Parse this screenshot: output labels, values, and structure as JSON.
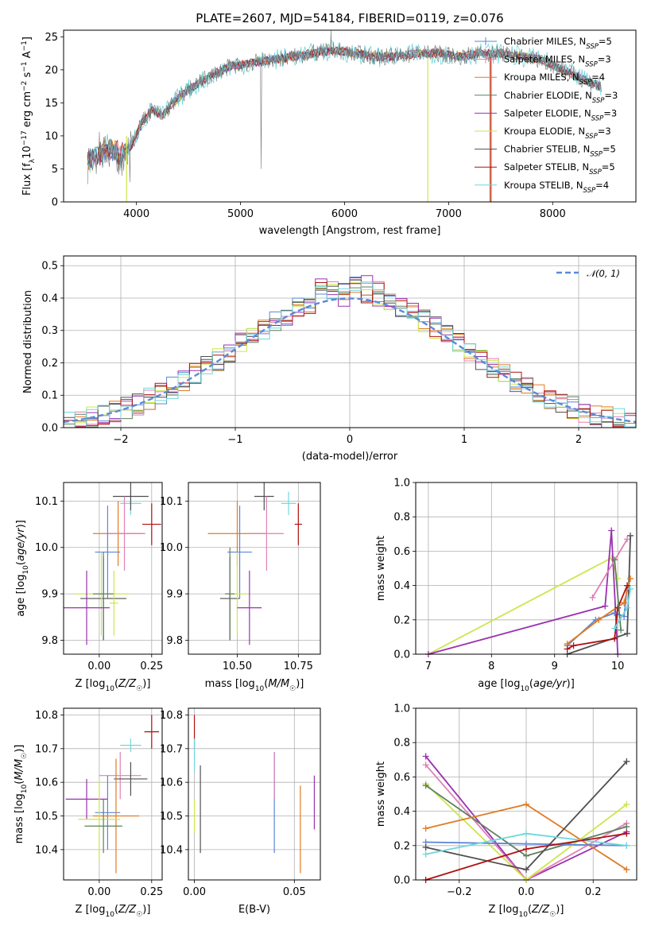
{
  "colors": {
    "chabrier_miles": "#5b86d6",
    "salpeter_miles": "#e07fb5",
    "kroupa_miles": "#e07b25",
    "chabrier_elodie": "#5f7f5f",
    "salpeter_elodie": "#9b30b0",
    "kroupa_elodie": "#cde64a",
    "chabrier_stelib": "#4f4f4f",
    "salpeter_stelib": "#b01010",
    "kroupa_stelib": "#6fd6dc",
    "normal_curve": "#5a8ad8"
  },
  "chart_data": [
    {
      "id": "spectrum",
      "type": "line",
      "title": "PLATE=2607, MJD=54184, FIBERID=0119, z=0.076",
      "xlabel": "wavelength [Angstrom, rest frame]",
      "ylabel": "Flux [f_λ 10^-17 erg cm^-2 s^-1 A^-1]",
      "xlim": [
        3300,
        8800
      ],
      "ylim": [
        0,
        26
      ],
      "xticks": [
        "4000",
        "5000",
        "6000",
        "7000",
        "8000"
      ],
      "yticks": [
        "0",
        "5",
        "10",
        "15",
        "20",
        "25"
      ],
      "grid": false,
      "legend_position": "upper-right",
      "spectrum_anchor_points": {
        "wavelength": [
          3550,
          3650,
          3750,
          3850,
          3950,
          4050,
          4150,
          4250,
          4350,
          4500,
          4700,
          4900,
          5100,
          5300,
          5500,
          5700,
          5900,
          6100,
          6300,
          6500,
          6700,
          6900,
          7100,
          7300,
          7500,
          7700,
          7900,
          8100,
          8300,
          8450
        ],
        "flux": [
          6,
          7.5,
          8,
          7,
          8.5,
          12,
          14,
          13,
          15,
          17,
          19,
          20.5,
          21,
          21.5,
          22,
          22.5,
          23,
          22.5,
          22,
          22,
          22.5,
          22.5,
          22,
          22.5,
          22.5,
          22,
          21.5,
          20,
          18.5,
          17.5
        ]
      },
      "legend": [
        {
          "label": "Chabrier MILES, N_SSP=5",
          "label_main": "Chabrier MILES, N",
          "label_sub": "SSP",
          "label_tail": "=5",
          "color_key": "chabrier_miles"
        },
        {
          "label": "Salpeter MILES, N_SSP=3",
          "label_main": "Salpeter MILES, N",
          "label_sub": "SSP",
          "label_tail": "=3",
          "color_key": "salpeter_miles"
        },
        {
          "label": "Kroupa MILES, N_SSP=4",
          "label_main": "Kroupa MILES, N",
          "label_sub": "SSP",
          "label_tail": "=4",
          "color_key": "kroupa_miles"
        },
        {
          "label": "Chabrier ELODIE, N_SSP=3",
          "label_main": "Chabrier ELODIE, N",
          "label_sub": "SSP",
          "label_tail": "=3",
          "color_key": "chabrier_elodie"
        },
        {
          "label": "Salpeter ELODIE, N_SSP=3",
          "label_main": "Salpeter ELODIE, N",
          "label_sub": "SSP",
          "label_tail": "=3",
          "color_key": "salpeter_elodie"
        },
        {
          "label": "Kroupa ELODIE, N_SSP=3",
          "label_main": "Kroupa ELODIE, N",
          "label_sub": "SSP",
          "label_tail": "=3",
          "color_key": "kroupa_elodie"
        },
        {
          "label": "Chabrier STELIB, N_SSP=5",
          "label_main": "Chabrier STELIB, N",
          "label_sub": "SSP",
          "label_tail": "=5",
          "color_key": "chabrier_stelib"
        },
        {
          "label": "Salpeter STELIB, N_SSP=5",
          "label_main": "Salpeter STELIB, N",
          "label_sub": "SSP",
          "label_tail": "=5",
          "color_key": "salpeter_stelib"
        },
        {
          "label": "Kroupa STELIB, N_SSP=4",
          "label_main": "Kroupa STELIB, N",
          "label_sub": "SSP",
          "label_tail": "=4",
          "color_key": "kroupa_stelib"
        }
      ]
    },
    {
      "id": "residuals",
      "type": "histogram",
      "xlabel": "(data-model)/error",
      "ylabel": "Normed distribution",
      "xlim": [
        -2.5,
        2.5
      ],
      "ylim": [
        0,
        0.53
      ],
      "xticks": [
        "−2",
        "−1",
        "0",
        "1",
        "2"
      ],
      "yticks": [
        "0.0",
        "0.1",
        "0.2",
        "0.3",
        "0.4",
        "0.5"
      ],
      "grid": true,
      "legend": "𝒩(0, 1)",
      "legend_position": "upper-right",
      "bin_width": 0.1,
      "bin_start": -2.5,
      "approx_distribution": "standard normal, max ≈ 0.40 at 0, histogram peaks ≈ 0.50"
    },
    {
      "id": "age_vs_Z",
      "type": "scatter-errorbar",
      "xlabel": "Z [log10(Z/Z☉)]",
      "ylabel": "age [log10(age/yr)]",
      "xlim": [
        -0.17,
        0.3
      ],
      "ylim": [
        9.77,
        10.14
      ],
      "xticks": [
        "0.00",
        "0.25"
      ],
      "yticks": [
        "9.8",
        "9.9",
        "10.0",
        "10.1"
      ],
      "grid": true,
      "points": [
        {
          "color_key": "kroupa_stelib",
          "x": 0.15,
          "y": 10.095,
          "xerr": 0.05,
          "yerr": 0.025
        },
        {
          "color_key": "chabrier_stelib",
          "x": 0.15,
          "y": 10.11,
          "xerr": 0.085,
          "yerr": 0.03
        },
        {
          "color_key": "salpeter_stelib",
          "x": 0.25,
          "y": 10.05,
          "xerr": 0.045,
          "yerr": 0.045
        },
        {
          "color_key": "kroupa_miles",
          "x": 0.09,
          "y": 10.03,
          "xerr": 0.12,
          "yerr": 0.07
        },
        {
          "color_key": "salpeter_miles",
          "x": 0.12,
          "y": 10.03,
          "xerr": 0.1,
          "yerr": 0.08
        },
        {
          "color_key": "chabrier_miles",
          "x": 0.04,
          "y": 9.99,
          "xerr": 0.06,
          "yerr": 0.1
        },
        {
          "color_key": "chabrier_stelib",
          "x": 0.02,
          "y": 9.89,
          "xerr": 0.11,
          "yerr": 0.09
        },
        {
          "color_key": "kroupa_elodie",
          "x": 0.01,
          "y": 9.9,
          "xerr": 0.13,
          "yerr": 0.09
        },
        {
          "color_key": "chabrier_elodie",
          "x": 0.02,
          "y": 9.9,
          "xerr": 0.05,
          "yerr": 0.09
        },
        {
          "color_key": "salpeter_elodie",
          "x": -0.06,
          "y": 9.87,
          "xerr": 0.11,
          "yerr": 0.08
        },
        {
          "color_key": "kroupa_elodie",
          "x": 0.07,
          "y": 9.88,
          "xerr": 0.02,
          "yerr": 0.07
        }
      ]
    },
    {
      "id": "age_vs_mass",
      "type": "scatter-errorbar",
      "xlabel": "mass [log10(M/M☉)]",
      "ylabel": "",
      "xlim": [
        10.3,
        10.84
      ],
      "ylim": [
        9.77,
        10.14
      ],
      "xticks": [
        "10.50",
        "10.75"
      ],
      "yticks": [
        "9.8",
        "9.9",
        "10.0",
        "10.1"
      ],
      "grid": true,
      "points": [
        {
          "color_key": "chabrier_stelib",
          "x": 10.61,
          "y": 10.11,
          "xerr": 0.04,
          "yerr": 0.03
        },
        {
          "color_key": "kroupa_stelib",
          "x": 10.71,
          "y": 10.095,
          "xerr": 0.03,
          "yerr": 0.025
        },
        {
          "color_key": "salpeter_stelib",
          "x": 10.75,
          "y": 10.05,
          "xerr": 0.015,
          "yerr": 0.045
        },
        {
          "color_key": "kroupa_miles",
          "x": 10.5,
          "y": 10.03,
          "xerr": 0.12,
          "yerr": 0.07
        },
        {
          "color_key": "salpeter_miles",
          "x": 10.62,
          "y": 10.03,
          "xerr": 0.07,
          "yerr": 0.08
        },
        {
          "color_key": "chabrier_miles",
          "x": 10.51,
          "y": 9.99,
          "xerr": 0.05,
          "yerr": 0.1
        },
        {
          "color_key": "chabrier_stelib",
          "x": 10.47,
          "y": 9.89,
          "xerr": 0.04,
          "yerr": 0.09
        },
        {
          "color_key": "kroupa_elodie",
          "x": 10.5,
          "y": 9.9,
          "xerr": 0.04,
          "yerr": 0.09
        },
        {
          "color_key": "chabrier_elodie",
          "x": 10.47,
          "y": 9.9,
          "xerr": 0.02,
          "yerr": 0.1
        },
        {
          "color_key": "salpeter_elodie",
          "x": 10.55,
          "y": 9.87,
          "xerr": 0.05,
          "yerr": 0.08
        }
      ]
    },
    {
      "id": "weight_vs_age",
      "type": "line",
      "xlabel": "age [log10(age/yr)]",
      "ylabel": "mass weight",
      "xlim": [
        6.8,
        10.3
      ],
      "ylim": [
        0,
        1
      ],
      "xticks": [
        "7",
        "8",
        "9",
        "10"
      ],
      "yticks": [
        "0.0",
        "0.2",
        "0.4",
        "0.6",
        "0.8",
        "1.0"
      ],
      "grid": true,
      "series": [
        {
          "color_key": "kroupa_elodie",
          "x": [
            7.0,
            9.9,
            10.0
          ],
          "y": [
            0.0,
            0.56,
            0.44
          ]
        },
        {
          "color_key": "salpeter_elodie",
          "x": [
            7.0,
            9.8,
            9.9,
            10.0
          ],
          "y": [
            0.0,
            0.28,
            0.72,
            0.0
          ]
        },
        {
          "color_key": "salpeter_miles",
          "x": [
            9.6,
            10.15
          ],
          "y": [
            0.33,
            0.67
          ]
        },
        {
          "color_key": "chabrier_stelib",
          "x": [
            9.2,
            10.15,
            10.2
          ],
          "y": [
            0.0,
            0.12,
            0.69
          ]
        },
        {
          "color_key": "chabrier_miles",
          "x": [
            9.2,
            9.65,
            9.95,
            10.1,
            10.15
          ],
          "y": [
            0.05,
            0.2,
            0.24,
            0.22,
            0.4
          ]
        },
        {
          "color_key": "kroupa_miles",
          "x": [
            9.2,
            9.7,
            10.1,
            10.2
          ],
          "y": [
            0.06,
            0.2,
            0.3,
            0.44
          ]
        },
        {
          "color_key": "salpeter_stelib",
          "x": [
            9.2,
            9.3,
            9.95,
            10.0,
            10.15
          ],
          "y": [
            0.03,
            0.05,
            0.09,
            0.27,
            0.4
          ]
        },
        {
          "color_key": "chabrier_elodie",
          "x": [
            9.95,
            10.05
          ],
          "y": [
            0.55,
            0.14
          ]
        },
        {
          "color_key": "kroupa_stelib",
          "x": [
            9.95,
            10.15,
            10.2
          ],
          "y": [
            0.15,
            0.27,
            0.38
          ]
        }
      ]
    },
    {
      "id": "mass_vs_Z",
      "type": "scatter-errorbar",
      "xlabel": "Z [log10(Z/Z☉)]",
      "ylabel": "mass [log10(M/M☉)]",
      "xlim": [
        -0.17,
        0.3
      ],
      "ylim": [
        10.31,
        10.82
      ],
      "xticks": [
        "0.00",
        "0.25"
      ],
      "yticks": [
        "10.4",
        "10.5",
        "10.6",
        "10.7",
        "10.8"
      ],
      "grid": true,
      "points": [
        {
          "color_key": "salpeter_stelib",
          "x": 0.25,
          "y": 10.75,
          "xerr": 0.035,
          "yerr": 0.05
        },
        {
          "color_key": "kroupa_stelib",
          "x": 0.15,
          "y": 10.71,
          "xerr": 0.05,
          "yerr": 0.02
        },
        {
          "color_key": "salpeter_miles",
          "x": 0.1,
          "y": 10.62,
          "xerr": 0.1,
          "yerr": 0.07
        },
        {
          "color_key": "chabrier_stelib",
          "x": 0.15,
          "y": 10.61,
          "xerr": 0.08,
          "yerr": 0.05
        },
        {
          "color_key": "salpeter_elodie",
          "x": -0.06,
          "y": 10.55,
          "xerr": 0.1,
          "yerr": 0.06
        },
        {
          "color_key": "chabrier_miles",
          "x": 0.04,
          "y": 10.51,
          "xerr": 0.06,
          "yerr": 0.11
        },
        {
          "color_key": "kroupa_miles",
          "x": 0.08,
          "y": 10.5,
          "xerr": 0.11,
          "yerr": 0.17
        },
        {
          "color_key": "kroupa_elodie",
          "x": 0.0,
          "y": 10.49,
          "xerr": 0.1,
          "yerr": 0.12
        },
        {
          "color_key": "chabrier_elodie",
          "x": 0.02,
          "y": 10.47,
          "xerr": 0.09,
          "yerr": 0.08
        }
      ]
    },
    {
      "id": "mass_vs_ebv",
      "type": "scatter-errorbar",
      "xlabel": "E(B-V)",
      "ylabel": "",
      "xlim": [
        -0.003,
        0.063
      ],
      "ylim": [
        10.31,
        10.82
      ],
      "xticks": [
        "0.00",
        "0.05"
      ],
      "yticks": [
        "10.4",
        "10.5",
        "10.6",
        "10.7",
        "10.8"
      ],
      "grid": true,
      "points": [
        {
          "color_key": "salpeter_stelib",
          "x": 0.0,
          "y": 10.75,
          "xerr": 0,
          "yerr": 0.05
        },
        {
          "color_key": "kroupa_stelib",
          "x": 0.0,
          "y": 10.68,
          "xerr": 0,
          "yerr": 0.05
        },
        {
          "color_key": "kroupa_elodie",
          "x": 0.0,
          "y": 10.5,
          "xerr": 0,
          "yerr": 0.05
        },
        {
          "color_key": "chabrier_stelib",
          "x": 0.003,
          "y": 10.52,
          "xerr": 0,
          "yerr": 0.13
        },
        {
          "color_key": "chabrier_miles",
          "x": 0.04,
          "y": 10.54,
          "xerr": 0,
          "yerr": 0.15
        },
        {
          "color_key": "salpeter_miles",
          "x": 0.04,
          "y": 10.62,
          "xerr": 0,
          "yerr": 0.07
        },
        {
          "color_key": "kroupa_miles",
          "x": 0.053,
          "y": 10.46,
          "xerr": 0,
          "yerr": 0.13
        },
        {
          "color_key": "salpeter_elodie",
          "x": 0.06,
          "y": 10.54,
          "xerr": 0,
          "yerr": 0.08
        }
      ]
    },
    {
      "id": "weight_vs_Z",
      "type": "line",
      "xlabel": "Z [log10(Z/Z☉)]",
      "ylabel": "mass weight",
      "xlim": [
        -0.33,
        0.33
      ],
      "ylim": [
        0,
        1
      ],
      "xticks": [
        "−0.2",
        "0.0",
        "0.2"
      ],
      "yticks": [
        "0.0",
        "0.2",
        "0.4",
        "0.6",
        "0.8",
        "1.0"
      ],
      "grid": true,
      "series": [
        {
          "color_key": "salpeter_elodie",
          "x": [
            -0.3,
            0.0,
            0.3
          ],
          "y": [
            0.72,
            0.0,
            0.28
          ]
        },
        {
          "color_key": "salpeter_miles",
          "x": [
            -0.3,
            0.0,
            0.3
          ],
          "y": [
            0.67,
            0.0,
            0.33
          ]
        },
        {
          "color_key": "kroupa_elodie",
          "x": [
            -0.3,
            0.0,
            0.3
          ],
          "y": [
            0.56,
            0.0,
            0.44
          ]
        },
        {
          "color_key": "chabrier_elodie",
          "x": [
            -0.3,
            0.0,
            0.3
          ],
          "y": [
            0.55,
            0.14,
            0.31
          ]
        },
        {
          "color_key": "kroupa_miles",
          "x": [
            -0.3,
            0.0,
            0.3
          ],
          "y": [
            0.3,
            0.44,
            0.06
          ]
        },
        {
          "color_key": "chabrier_miles",
          "x": [
            -0.3,
            0.0,
            0.3
          ],
          "y": [
            0.22,
            0.21,
            0.2
          ]
        },
        {
          "color_key": "chabrier_stelib",
          "x": [
            -0.3,
            0.0,
            0.3
          ],
          "y": [
            0.19,
            0.06,
            0.69
          ]
        },
        {
          "color_key": "kroupa_stelib",
          "x": [
            -0.3,
            0.0,
            0.3
          ],
          "y": [
            0.15,
            0.27,
            0.2
          ]
        },
        {
          "color_key": "salpeter_stelib",
          "x": [
            -0.3,
            0.0,
            0.3
          ],
          "y": [
            0.0,
            0.18,
            0.27
          ]
        }
      ]
    }
  ]
}
